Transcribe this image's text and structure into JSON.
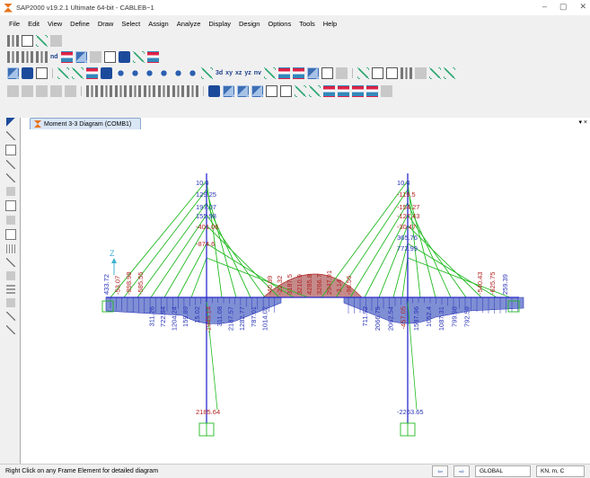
{
  "window": {
    "title": "SAP2000 v19.2.1 Ultimate 64-bit - CABLEB~1",
    "minimize": "–",
    "maximize": "▢",
    "close": "✕"
  },
  "menu": {
    "items": [
      "File",
      "Edit",
      "View",
      "Define",
      "Draw",
      "Select",
      "Assign",
      "Analyze",
      "Display",
      "Design",
      "Options",
      "Tools",
      "Help"
    ],
    "help_icon": "?"
  },
  "toolbar": {
    "text_3d": "3d",
    "text_xy": "xy",
    "text_xz": "xz",
    "text_yz": "yz",
    "text_nv": "nv",
    "text_nd": "nd"
  },
  "tab": {
    "label": "Moment 3-3 Diagram (COMB1)",
    "arrow": "▾ ×"
  },
  "status": {
    "hint": "Right Click on any Frame Element for detailed diagram",
    "coord": "GLOBAL",
    "units": "KN, m, C"
  },
  "diagram": {
    "colors": {
      "cable": "#22bb22",
      "tower": "#2a2acc",
      "neg": "#2a34b8",
      "pos": "#b22222",
      "pos_fill": "#c58a8a",
      "neg_fill": "#7f8fd4"
    },
    "axis_label": "Z",
    "left_tower_labels": [
      "10.4",
      "129.25",
      "197.07",
      "155.98",
      "-401.06",
      "-874.6",
      "2185.64"
    ],
    "right_tower_labels": [
      "10.4",
      "-119.5",
      "-154.27",
      "-127.43",
      "-30.47",
      "365.76",
      "772.99",
      "-2263.65"
    ],
    "left_deck_labels": [
      "433.72",
      "-53.07",
      "-898.98",
      "-585.55",
      "311.26",
      "722.94",
      "1204.24",
      "159.89",
      "15.02",
      "-1945.14",
      "311.08",
      "2187.57",
      "1282.77",
      "787.01",
      "1014.02"
    ],
    "center_labels": [
      "-40.89",
      "-22.32",
      "3187.5",
      "3210.9",
      "4285.8",
      "3266.7",
      "2947.91",
      "-3.14",
      "-96.56"
    ],
    "right_deck_labels": [
      "711.92",
      "2066.75",
      "2062.54",
      "-457.05",
      "1587.96",
      "1052.4",
      "1087.31",
      "799.98",
      "792.59",
      "-540.43",
      "-625.75",
      "259.39"
    ]
  }
}
